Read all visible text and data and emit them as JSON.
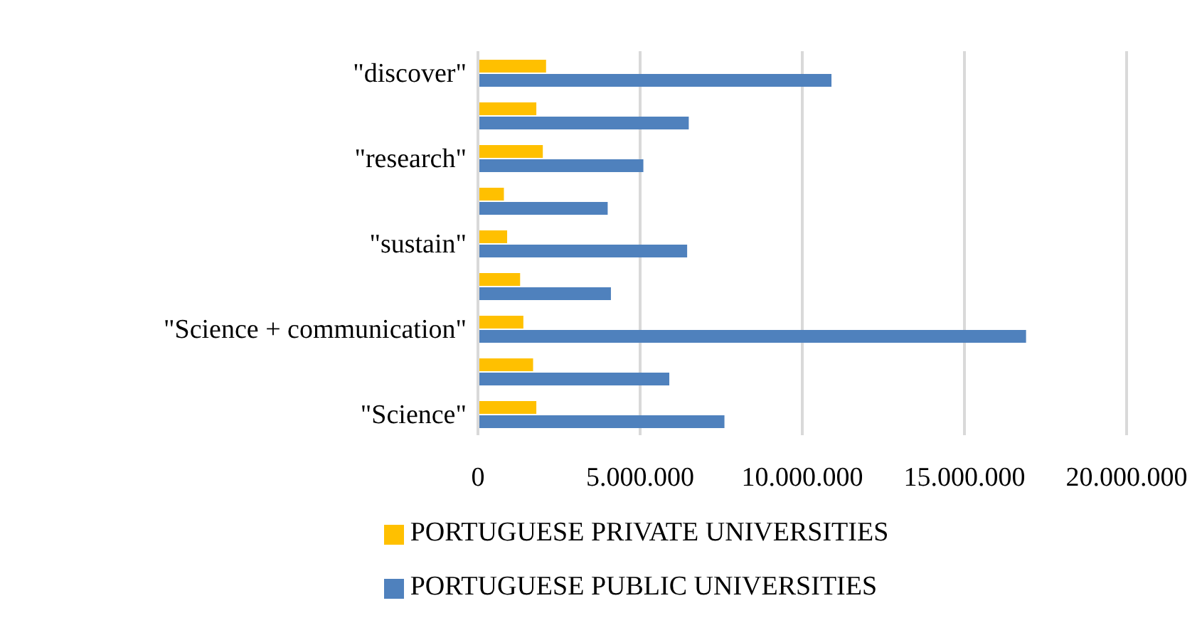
{
  "chart_data": {
    "type": "bar",
    "orientation": "horizontal",
    "categories": [
      "\"discover\"",
      null,
      "\"research\"",
      null,
      "\"sustain\"",
      null,
      "\"Science + communication\"",
      null,
      "\"Science\""
    ],
    "series": [
      {
        "name": "PORTUGUESE PRIVATE UNIVERSITIES",
        "color": "#ffc000",
        "values": [
          2100000,
          1800000,
          2000000,
          800000,
          900000,
          1300000,
          1400000,
          1700000,
          1800000
        ]
      },
      {
        "name": "PORTUGUESE PUBLIC UNIVERSITIES",
        "color": "#4f81bd",
        "values": [
          10900000,
          6500000,
          5100000,
          4000000,
          6450000,
          4100000,
          16900000,
          5900000,
          7600000
        ]
      }
    ],
    "xlim": [
      0,
      20000000
    ],
    "xticks": [
      0,
      {
        "value": 5000000,
        "label": "5.000.000"
      },
      {
        "value": 10000000,
        "label": "10.000.000"
      },
      {
        "value": 15000000,
        "label": "15.000.000"
      },
      {
        "value": 20000000,
        "label": "20.000.000"
      }
    ],
    "grid": "x",
    "legend": "bottom"
  }
}
